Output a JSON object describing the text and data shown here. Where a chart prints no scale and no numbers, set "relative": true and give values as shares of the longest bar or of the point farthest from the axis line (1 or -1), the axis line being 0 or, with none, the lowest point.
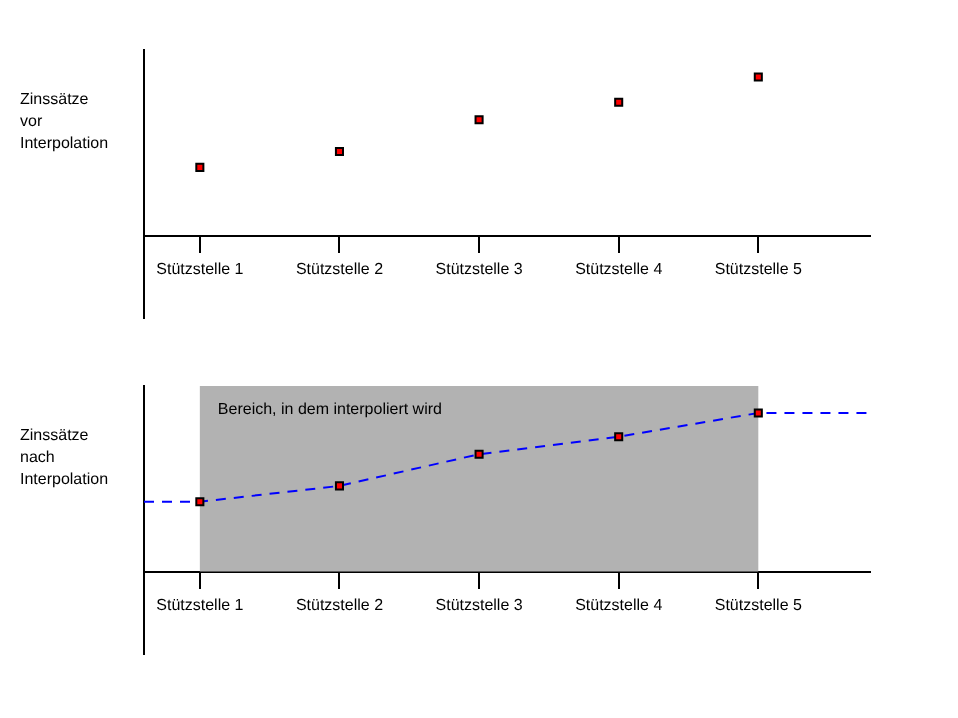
{
  "chart_data": [
    {
      "type": "scatter",
      "categories": [
        "Stützstelle 1",
        "Stützstelle 2",
        "Stützstelle 3",
        "Stützstelle 4",
        "Stützstelle 5"
      ],
      "ylabel": "Zinssätze vor Interpolation",
      "relative": true,
      "marker": "square",
      "series": [
        {
          "color": "#ff0000",
          "values": [
            0.43,
            0.53,
            0.73,
            0.84,
            1
          ]
        }
      ]
    },
    {
      "type": "scatter",
      "categories": [
        "Stützstelle 1",
        "Stützstelle 2",
        "Stützstelle 3",
        "Stützstelle 4",
        "Stützstelle 5"
      ],
      "ylabel": "Zinssätze nach Interpolation",
      "relative": true,
      "marker": "square",
      "bands": [
        {
          "axis": "x",
          "from": "Stützstelle 1",
          "to": "Stützstelle 5",
          "label": "Bereich, in dem interpoliert wird",
          "color": "#b2b2b2"
        }
      ],
      "series": [
        {
          "type": "line",
          "color": "#0000ff",
          "line_style": "dashed",
          "marker": "none",
          "values": [
            0.44,
            0.54,
            0.74,
            0.85,
            1
          ]
        },
        {
          "color": "#ff0000",
          "values": [
            0.44,
            0.54,
            0.74,
            0.85,
            1
          ]
        }
      ]
    }
  ]
}
